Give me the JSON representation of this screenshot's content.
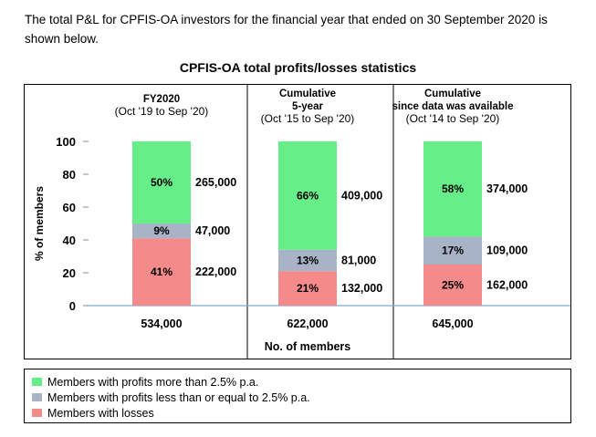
{
  "intro": "The total P&L for CPFIS-OA investors for the financial year that ended on 30 September 2020 is shown below.",
  "chart_data": {
    "type": "bar",
    "stacked": true,
    "title": "CPFIS-OA total profits/losses statistics",
    "ylabel": "% of members",
    "xlabel": "No. of members",
    "ylim": [
      0,
      100
    ],
    "yticks": [
      "0",
      "20",
      "40",
      "60",
      "80",
      "100"
    ],
    "grid": false,
    "legend_position": "bottom",
    "categories": [
      {
        "lines": [
          "FY2020",
          "(Oct '19 to Sep '20)"
        ],
        "total": "534,000"
      },
      {
        "lines": [
          "Cumulative",
          "5-year",
          "(Oct '15 to Sep '20)"
        ],
        "total": "622,000"
      },
      {
        "lines": [
          "Cumulative",
          "since data was available",
          "(Oct '14 to Sep '20)"
        ],
        "total": "645,000"
      }
    ],
    "series": [
      {
        "name": "Members with losses",
        "color": "#f48a8a",
        "values": [
          41,
          21,
          25
        ],
        "labels": [
          "41%",
          "21%",
          "25%"
        ],
        "counts": [
          "222,000",
          "132,000",
          "162,000"
        ]
      },
      {
        "name": "Members with profits less than or equal to 2.5% p.a.",
        "color": "#a9b3c8",
        "values": [
          9,
          13,
          17
        ],
        "labels": [
          "9%",
          "13%",
          "17%"
        ],
        "counts": [
          "47,000",
          "81,000",
          "109,000"
        ]
      },
      {
        "name": "Members with profits more than 2.5% p.a.",
        "color": "#66ee88",
        "values": [
          50,
          66,
          58
        ],
        "labels": [
          "50%",
          "66%",
          "58%"
        ],
        "counts": [
          "265,000",
          "409,000",
          "374,000"
        ]
      }
    ]
  },
  "legend": {
    "items": [
      {
        "label": "Members with profits more than 2.5% p.a.",
        "color": "#66ee88"
      },
      {
        "label": "Members with profits less than or equal to 2.5% p.a.",
        "color": "#a9b3c8"
      },
      {
        "label": "Members with losses",
        "color": "#f48a8a"
      }
    ]
  }
}
